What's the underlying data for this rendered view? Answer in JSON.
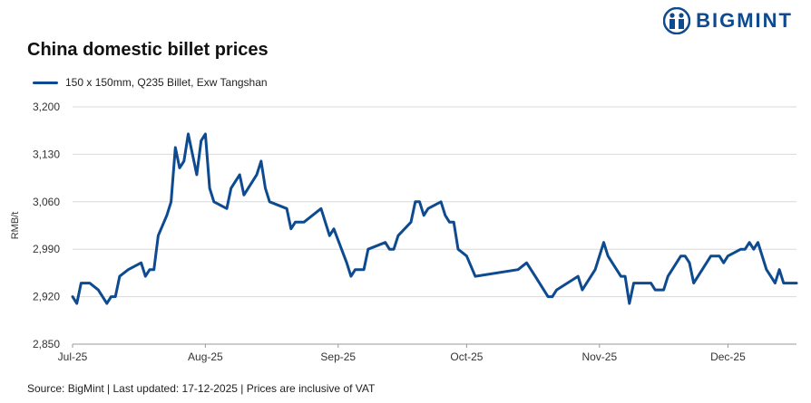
{
  "brand": {
    "name": "BIGMINT",
    "color": "#0d4a8f"
  },
  "footer": {
    "source": "Source: BigMint | Last updated: 17-12-2025 | Prices are inclusive of VAT"
  },
  "chart_data": {
    "type": "line",
    "title": "China domestic billet prices",
    "xlabel": "",
    "ylabel": "RMB/t",
    "ylim": [
      2850,
      3200
    ],
    "yticks": [
      3200,
      3130,
      3060,
      2990,
      2920,
      2850
    ],
    "ytick_labels": [
      "3,200",
      "3,130",
      "3,060",
      "2,990",
      "2,920",
      "2,850"
    ],
    "xlim": [
      "2025-07-01",
      "2025-12-17"
    ],
    "xticks": [
      {
        "date": "2025-07-01",
        "label": "Jul-25"
      },
      {
        "date": "2025-08-01",
        "label": "Aug-25"
      },
      {
        "date": "2025-09-01",
        "label": "Sep-25"
      },
      {
        "date": "2025-10-01",
        "label": "Oct-25"
      },
      {
        "date": "2025-11-01",
        "label": "Nov-25"
      },
      {
        "date": "2025-12-01",
        "label": "Dec-25"
      }
    ],
    "grid": "horizontal",
    "legend_position": "top-left",
    "series": [
      {
        "name": "150 x 150mm, Q235 Billet, Exw Tangshan",
        "color": "#0d4a8f",
        "points": [
          [
            "2025-07-01",
            2920
          ],
          [
            "2025-07-02",
            2910
          ],
          [
            "2025-07-03",
            2940
          ],
          [
            "2025-07-05",
            2940
          ],
          [
            "2025-07-07",
            2930
          ],
          [
            "2025-07-09",
            2910
          ],
          [
            "2025-07-10",
            2920
          ],
          [
            "2025-07-11",
            2920
          ],
          [
            "2025-07-12",
            2950
          ],
          [
            "2025-07-14",
            2960
          ],
          [
            "2025-07-17",
            2970
          ],
          [
            "2025-07-18",
            2950
          ],
          [
            "2025-07-19",
            2960
          ],
          [
            "2025-07-20",
            2960
          ],
          [
            "2025-07-21",
            3010
          ],
          [
            "2025-07-23",
            3040
          ],
          [
            "2025-07-24",
            3060
          ],
          [
            "2025-07-25",
            3140
          ],
          [
            "2025-07-26",
            3110
          ],
          [
            "2025-07-27",
            3120
          ],
          [
            "2025-07-28",
            3160
          ],
          [
            "2025-07-29",
            3130
          ],
          [
            "2025-07-30",
            3100
          ],
          [
            "2025-07-31",
            3150
          ],
          [
            "2025-08-01",
            3160
          ],
          [
            "2025-08-02",
            3080
          ],
          [
            "2025-08-03",
            3060
          ],
          [
            "2025-08-06",
            3050
          ],
          [
            "2025-08-07",
            3080
          ],
          [
            "2025-08-09",
            3100
          ],
          [
            "2025-08-10",
            3070
          ],
          [
            "2025-08-13",
            3100
          ],
          [
            "2025-08-14",
            3120
          ],
          [
            "2025-08-15",
            3080
          ],
          [
            "2025-08-16",
            3060
          ],
          [
            "2025-08-20",
            3050
          ],
          [
            "2025-08-21",
            3020
          ],
          [
            "2025-08-22",
            3030
          ],
          [
            "2025-08-24",
            3030
          ],
          [
            "2025-08-28",
            3050
          ],
          [
            "2025-08-29",
            3030
          ],
          [
            "2025-08-30",
            3010
          ],
          [
            "2025-08-31",
            3020
          ],
          [
            "2025-09-03",
            2970
          ],
          [
            "2025-09-04",
            2950
          ],
          [
            "2025-09-05",
            2960
          ],
          [
            "2025-09-07",
            2960
          ],
          [
            "2025-09-08",
            2990
          ],
          [
            "2025-09-12",
            3000
          ],
          [
            "2025-09-13",
            2990
          ],
          [
            "2025-09-14",
            2990
          ],
          [
            "2025-09-15",
            3010
          ],
          [
            "2025-09-18",
            3030
          ],
          [
            "2025-09-19",
            3060
          ],
          [
            "2025-09-20",
            3060
          ],
          [
            "2025-09-21",
            3040
          ],
          [
            "2025-09-22",
            3050
          ],
          [
            "2025-09-25",
            3060
          ],
          [
            "2025-09-26",
            3040
          ],
          [
            "2025-09-27",
            3030
          ],
          [
            "2025-09-28",
            3030
          ],
          [
            "2025-09-29",
            2990
          ],
          [
            "2025-10-01",
            2980
          ],
          [
            "2025-10-03",
            2950
          ],
          [
            "2025-10-13",
            2960
          ],
          [
            "2025-10-15",
            2970
          ],
          [
            "2025-10-17",
            2950
          ],
          [
            "2025-10-20",
            2920
          ],
          [
            "2025-10-21",
            2920
          ],
          [
            "2025-10-22",
            2930
          ],
          [
            "2025-10-27",
            2950
          ],
          [
            "2025-10-28",
            2930
          ],
          [
            "2025-10-31",
            2960
          ],
          [
            "2025-11-02",
            3000
          ],
          [
            "2025-11-03",
            2980
          ],
          [
            "2025-11-06",
            2950
          ],
          [
            "2025-11-07",
            2950
          ],
          [
            "2025-11-08",
            2910
          ],
          [
            "2025-11-09",
            2940
          ],
          [
            "2025-11-13",
            2940
          ],
          [
            "2025-11-14",
            2930
          ],
          [
            "2025-11-16",
            2930
          ],
          [
            "2025-11-17",
            2950
          ],
          [
            "2025-11-20",
            2980
          ],
          [
            "2025-11-21",
            2980
          ],
          [
            "2025-11-22",
            2970
          ],
          [
            "2025-11-23",
            2940
          ],
          [
            "2025-11-27",
            2980
          ],
          [
            "2025-11-29",
            2980
          ],
          [
            "2025-11-30",
            2970
          ],
          [
            "2025-12-01",
            2980
          ],
          [
            "2025-12-04",
            2990
          ],
          [
            "2025-12-05",
            2990
          ],
          [
            "2025-12-06",
            3000
          ],
          [
            "2025-12-07",
            2990
          ],
          [
            "2025-12-08",
            3000
          ],
          [
            "2025-12-10",
            2960
          ],
          [
            "2025-12-11",
            2950
          ],
          [
            "2025-12-12",
            2940
          ],
          [
            "2025-12-13",
            2960
          ],
          [
            "2025-12-14",
            2940
          ],
          [
            "2025-12-17",
            2940
          ]
        ]
      }
    ]
  }
}
